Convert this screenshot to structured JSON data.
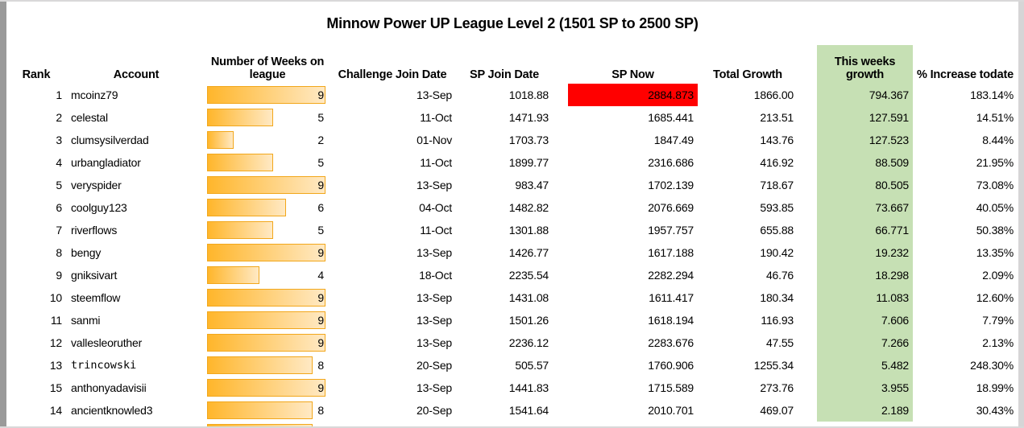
{
  "title": "Minnow Power UP League Level 2 (1501 SP to 2500 SP)",
  "colors": {
    "highlight_green": "#c6e0b4",
    "highlight_red": "#ff0000",
    "bar_fill_start": "#ffb62b",
    "bar_fill_end": "#ffe9c4",
    "bar_border": "#f2a71b"
  },
  "table": {
    "weeks_bar_max": 9,
    "columns": {
      "rank": "Rank",
      "account": "Account",
      "weeks_line1": "Number of Weeks on",
      "weeks_line2": "league",
      "challenge_join_date": "Challenge Join Date",
      "sp_join_date": "SP Join Date",
      "sp_now": "SP Now",
      "total_growth": "Total Growth",
      "this_weeks_growth_line1": "This weeks",
      "this_weeks_growth_line2": "growth",
      "pct_increase": "% Increase todate"
    },
    "rows": [
      {
        "rank": "1",
        "account": "mcoinz79",
        "weeks": 9,
        "weeks_label": "9",
        "challenge_join_date": "13-Sep",
        "sp_join_date": "1018.88",
        "sp_now": "2884.873",
        "total_growth": "1866.00",
        "this_weeks_growth": "794.367",
        "pct_increase": "183.14%",
        "sp_now_red": true
      },
      {
        "rank": "2",
        "account": "celestal",
        "weeks": 5,
        "weeks_label": "5",
        "challenge_join_date": "11-Oct",
        "sp_join_date": "1471.93",
        "sp_now": "1685.441",
        "total_growth": "213.51",
        "this_weeks_growth": "127.591",
        "pct_increase": "14.51%"
      },
      {
        "rank": "3",
        "account": "clumsysilverdad",
        "weeks": 2,
        "weeks_label": "2",
        "challenge_join_date": "01-Nov",
        "sp_join_date": "1703.73",
        "sp_now": "1847.49",
        "total_growth": "143.76",
        "this_weeks_growth": "127.523",
        "pct_increase": "8.44%"
      },
      {
        "rank": "4",
        "account": "urbangladiator",
        "weeks": 5,
        "weeks_label": "5",
        "challenge_join_date": "11-Oct",
        "sp_join_date": "1899.77",
        "sp_now": "2316.686",
        "total_growth": "416.92",
        "this_weeks_growth": "88.509",
        "pct_increase": "21.95%"
      },
      {
        "rank": "5",
        "account": "veryspider",
        "weeks": 9,
        "weeks_label": "9",
        "challenge_join_date": "13-Sep",
        "sp_join_date": "983.47",
        "sp_now": "1702.139",
        "total_growth": "718.67",
        "this_weeks_growth": "80.505",
        "pct_increase": "73.08%"
      },
      {
        "rank": "6",
        "account": "coolguy123",
        "weeks": 6,
        "weeks_label": "6",
        "challenge_join_date": "04-Oct",
        "sp_join_date": "1482.82",
        "sp_now": "2076.669",
        "total_growth": "593.85",
        "this_weeks_growth": "73.667",
        "pct_increase": "40.05%"
      },
      {
        "rank": "7",
        "account": "riverflows",
        "weeks": 5,
        "weeks_label": "5",
        "challenge_join_date": "11-Oct",
        "sp_join_date": "1301.88",
        "sp_now": "1957.757",
        "total_growth": "655.88",
        "this_weeks_growth": "66.771",
        "pct_increase": "50.38%"
      },
      {
        "rank": "8",
        "account": "bengy",
        "weeks": 9,
        "weeks_label": "9",
        "challenge_join_date": "13-Sep",
        "sp_join_date": "1426.77",
        "sp_now": "1617.188",
        "total_growth": "190.42",
        "this_weeks_growth": "19.232",
        "pct_increase": "13.35%"
      },
      {
        "rank": "9",
        "account": "gniksivart",
        "weeks": 4,
        "weeks_label": "4",
        "challenge_join_date": "18-Oct",
        "sp_join_date": "2235.54",
        "sp_now": "2282.294",
        "total_growth": "46.76",
        "this_weeks_growth": "18.298",
        "pct_increase": "2.09%"
      },
      {
        "rank": "10",
        "account": "steemflow",
        "weeks": 9,
        "weeks_label": "9",
        "challenge_join_date": "13-Sep",
        "sp_join_date": "1431.08",
        "sp_now": "1611.417",
        "total_growth": "180.34",
        "this_weeks_growth": "11.083",
        "pct_increase": "12.60%"
      },
      {
        "rank": "11",
        "account": "sanmi",
        "weeks": 9,
        "weeks_label": "9",
        "challenge_join_date": "13-Sep",
        "sp_join_date": "1501.26",
        "sp_now": "1618.194",
        "total_growth": "116.93",
        "this_weeks_growth": "7.606",
        "pct_increase": "7.79%"
      },
      {
        "rank": "12",
        "account": "vallesleoruther",
        "weeks": 9,
        "weeks_label": "9",
        "challenge_join_date": "13-Sep",
        "sp_join_date": "2236.12",
        "sp_now": "2283.676",
        "total_growth": "47.55",
        "this_weeks_growth": "7.266",
        "pct_increase": "2.13%"
      },
      {
        "rank": "13",
        "account": "trincowski",
        "weeks": 8,
        "weeks_label": "8",
        "challenge_join_date": "20-Sep",
        "sp_join_date": "505.57",
        "sp_now": "1760.906",
        "total_growth": "1255.34",
        "this_weeks_growth": "5.482",
        "pct_increase": "248.30%",
        "alt_font": true
      },
      {
        "rank": "15",
        "account": "anthonyadavisii",
        "weeks": 9,
        "weeks_label": "9",
        "challenge_join_date": "13-Sep",
        "sp_join_date": "1441.83",
        "sp_now": "1715.589",
        "total_growth": "273.76",
        "this_weeks_growth": "3.955",
        "pct_increase": "18.99%"
      },
      {
        "rank": "14",
        "account": "ancientknowled3",
        "weeks": 8,
        "weeks_label": "8",
        "challenge_join_date": "20-Sep",
        "sp_join_date": "1541.64",
        "sp_now": "2010.701",
        "total_growth": "469.07",
        "this_weeks_growth": "2.189",
        "pct_increase": "30.43%"
      },
      {
        "rank": "",
        "account": "",
        "weeks": 8,
        "weeks_label": "",
        "challenge_join_date": "",
        "sp_join_date": "",
        "sp_now": "",
        "total_growth": "",
        "this_weeks_growth": "",
        "pct_increase": "",
        "partial": true
      }
    ]
  }
}
